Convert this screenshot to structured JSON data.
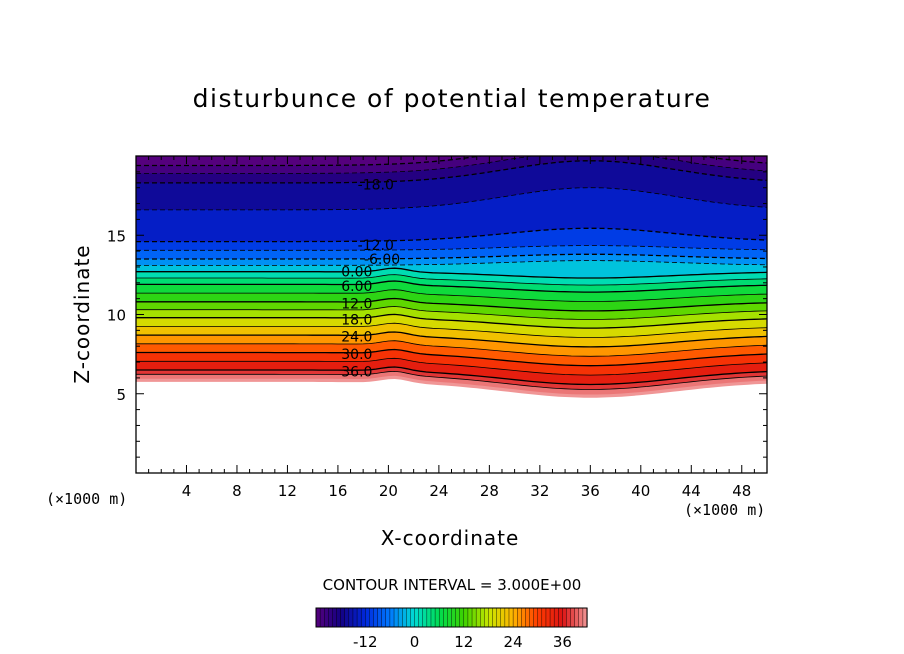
{
  "chart_data": {
    "type": "heatmap",
    "title": "disturbunce of potential temperature",
    "xlabel": "X-coordinate",
    "ylabel": "Z-coordinate",
    "x_unit": "(×1000 m)",
    "xlim": [
      0,
      50
    ],
    "ylim": [
      0,
      20
    ],
    "x_ticks": [
      4,
      8,
      12,
      16,
      20,
      24,
      28,
      32,
      36,
      40,
      44,
      48
    ],
    "y_ticks": [
      5,
      10,
      15
    ],
    "contour_interval_label": "CONTOUR INTERVAL = 3.000E+00",
    "contour_interval": 3.0,
    "value_range": [
      -24,
      42
    ],
    "contour_labels": [
      {
        "text": "-18.0",
        "value": -18,
        "x": 19,
        "z": 18.2
      },
      {
        "text": "-12.0",
        "value": -12,
        "x": 19,
        "z": 14.4
      },
      {
        "text": "-6.00",
        "value": -6,
        "x": 19.5,
        "z": 13.5
      },
      {
        "text": "0.00",
        "value": 0,
        "x": 17.5,
        "z": 12.7
      },
      {
        "text": "6.00",
        "value": 6,
        "x": 17.5,
        "z": 11.8
      },
      {
        "text": "12.0",
        "value": 12,
        "x": 17.5,
        "z": 10.7
      },
      {
        "text": "18.0",
        "value": 18,
        "x": 17.5,
        "z": 9.7
      },
      {
        "text": "24.0",
        "value": 24,
        "x": 17.5,
        "z": 8.6
      },
      {
        "text": "30.0",
        "value": 30,
        "x": 17.5,
        "z": 7.5
      },
      {
        "text": "36.0",
        "value": 36,
        "x": 17.5,
        "z": 6.4
      }
    ],
    "colorbar": {
      "ticks": [
        {
          "label": "-12",
          "value": -12
        },
        {
          "label": "0",
          "value": 0
        },
        {
          "label": "12",
          "value": 12
        },
        {
          "label": "24",
          "value": 24
        },
        {
          "label": "36",
          "value": 36
        }
      ]
    }
  }
}
